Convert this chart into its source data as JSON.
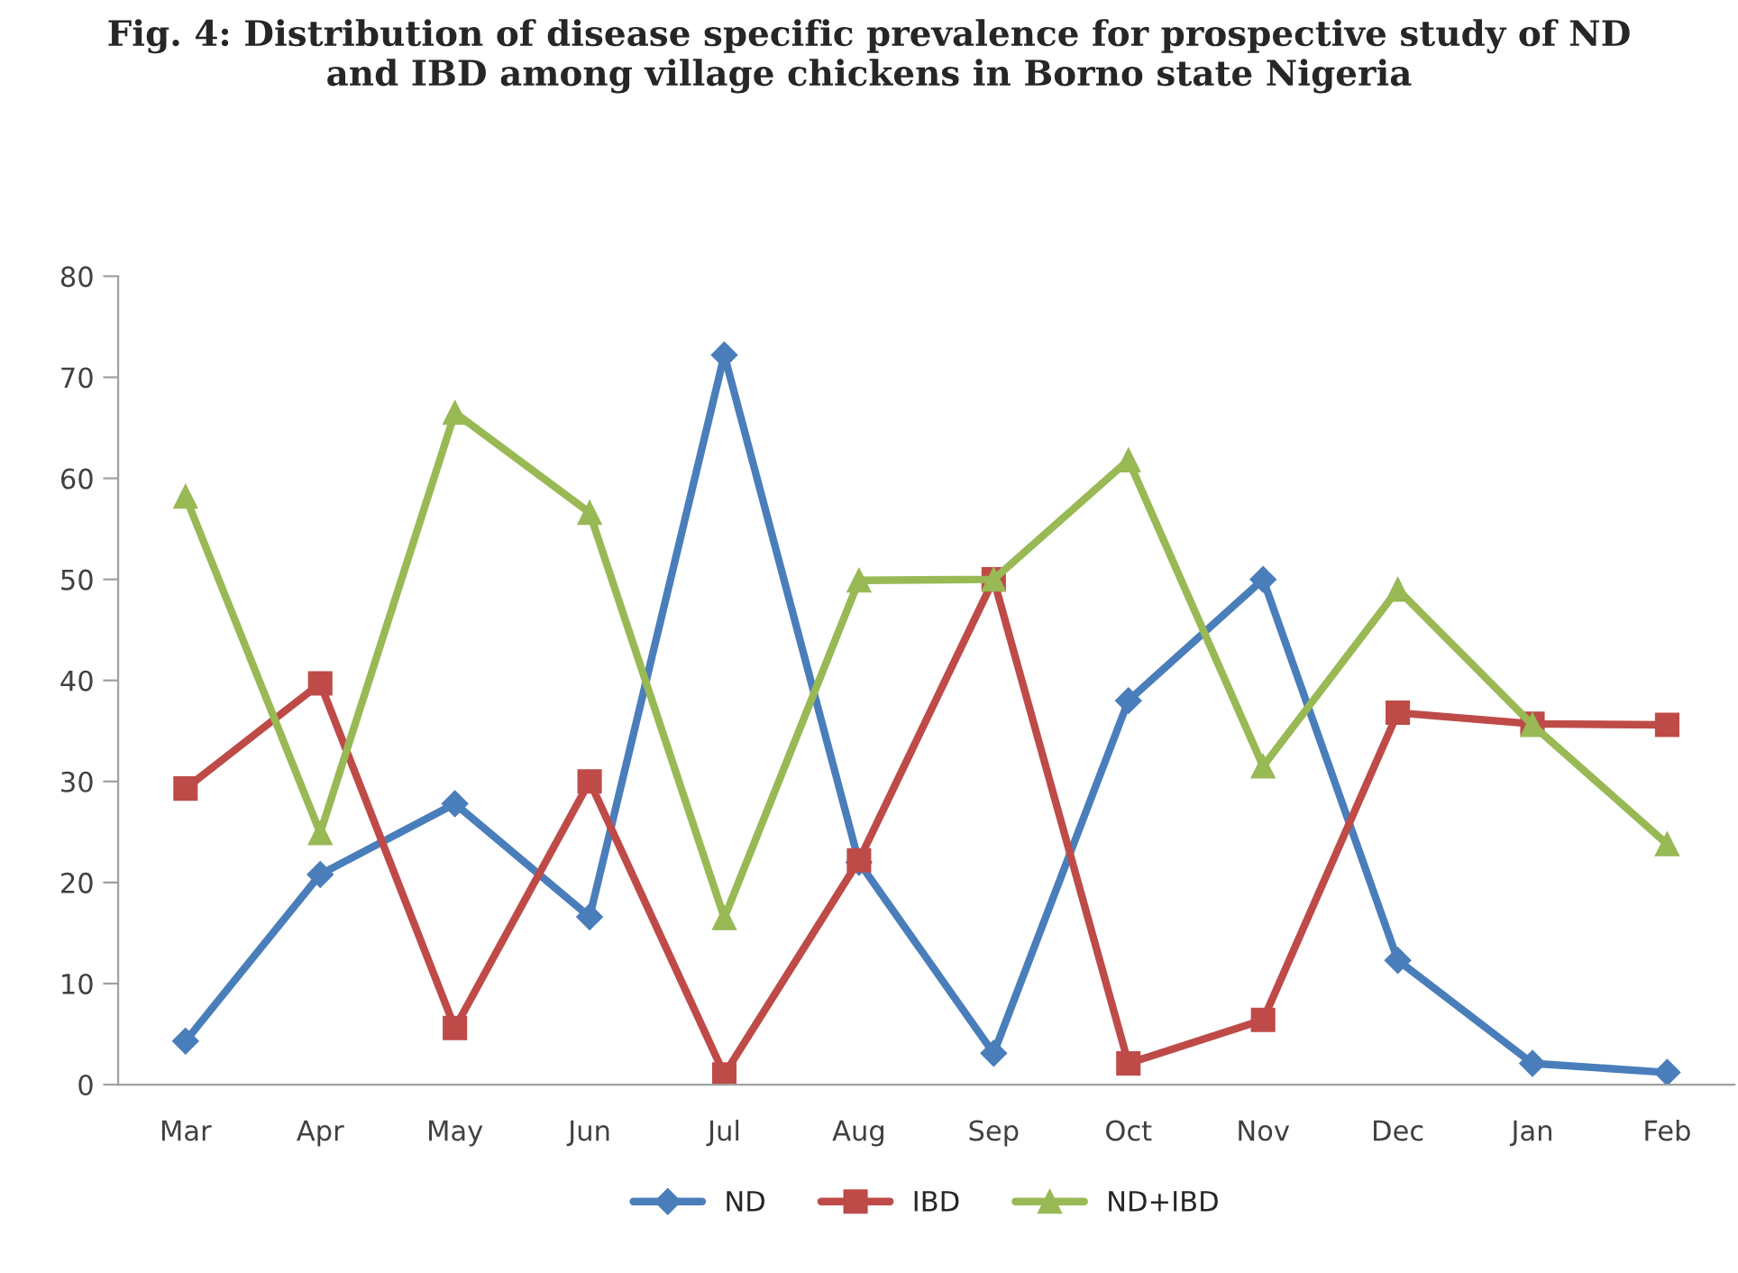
{
  "chart_data": {
    "type": "line",
    "title": "Fig. 4: Distribution of disease specific prevalence for prospective study of ND\nand IBD among village chickens in Borno state Nigeria",
    "categories": [
      "Mar",
      "Apr",
      "May",
      "Jun",
      "Jul",
      "Aug",
      "Sep",
      "Oct",
      "Nov",
      "Dec",
      "Jan",
      "Feb"
    ],
    "series": [
      {
        "name": "ND",
        "color": "#4a7ebb",
        "marker": "diamond",
        "values": [
          4.3,
          20.8,
          27.8,
          16.6,
          72.2,
          22,
          3.1,
          38,
          50,
          12.3,
          2.1,
          1.2
        ]
      },
      {
        "name": "IBD",
        "color": "#be4b48",
        "marker": "square",
        "values": [
          29.3,
          39.7,
          5.6,
          30,
          1.0,
          22.2,
          50,
          2.1,
          6.4,
          36.8,
          35.7,
          35.6
        ]
      },
      {
        "name": "ND+IBD",
        "color": "#98b954",
        "marker": "triangle",
        "values": [
          58.2,
          24.9,
          66.5,
          56.6,
          16.5,
          49.9,
          50,
          61.8,
          31.5,
          49,
          35.6,
          23.8
        ]
      }
    ],
    "ylim": [
      0,
      80
    ],
    "yticks": [
      0,
      10,
      20,
      30,
      40,
      50,
      60,
      70,
      80
    ],
    "grid": false,
    "legend": "bottom",
    "line_style": "solid"
  }
}
